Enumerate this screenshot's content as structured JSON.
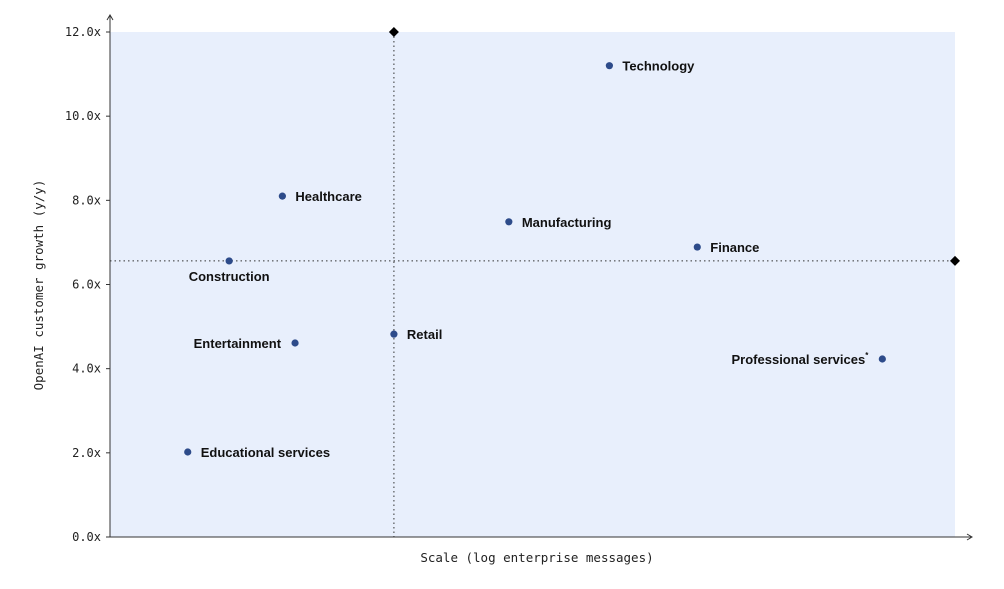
{
  "chart_data": {
    "type": "scatter",
    "xlabel": "Scale (log enterprise messages)",
    "ylabel": "OpenAI customer growth (y/y)",
    "x_scale": "log",
    "x_ticks_shown": false,
    "xlim": [
      0,
      100
    ],
    "ylim": [
      0,
      12
    ],
    "y_ticks": [
      "0.0x",
      "2.0x",
      "4.0x",
      "6.0x",
      "8.0x",
      "10.0x",
      "12.0x"
    ],
    "grid": false,
    "background_color": "#e8effc",
    "point_color": "#2d4b8a",
    "reference_lines": {
      "x": 33.6,
      "y": 6.56,
      "style": "dotted",
      "marker": "diamond"
    },
    "points": [
      {
        "label": "Technology",
        "x": 59.1,
        "y": 11.2
      },
      {
        "label": "Healthcare",
        "x": 20.4,
        "y": 8.1
      },
      {
        "label": "Manufacturing",
        "x": 47.2,
        "y": 7.49
      },
      {
        "label": "Finance",
        "x": 69.5,
        "y": 6.89
      },
      {
        "label": "Construction",
        "x": 14.1,
        "y": 6.56
      },
      {
        "label": "Retail",
        "x": 33.6,
        "y": 4.82
      },
      {
        "label": "Entertainment",
        "x": 21.9,
        "y": 4.61
      },
      {
        "label": "Professional services",
        "x": 91.4,
        "y": 4.23,
        "footnote": "*"
      },
      {
        "label": "Educational services",
        "x": 9.2,
        "y": 2.02
      }
    ]
  }
}
